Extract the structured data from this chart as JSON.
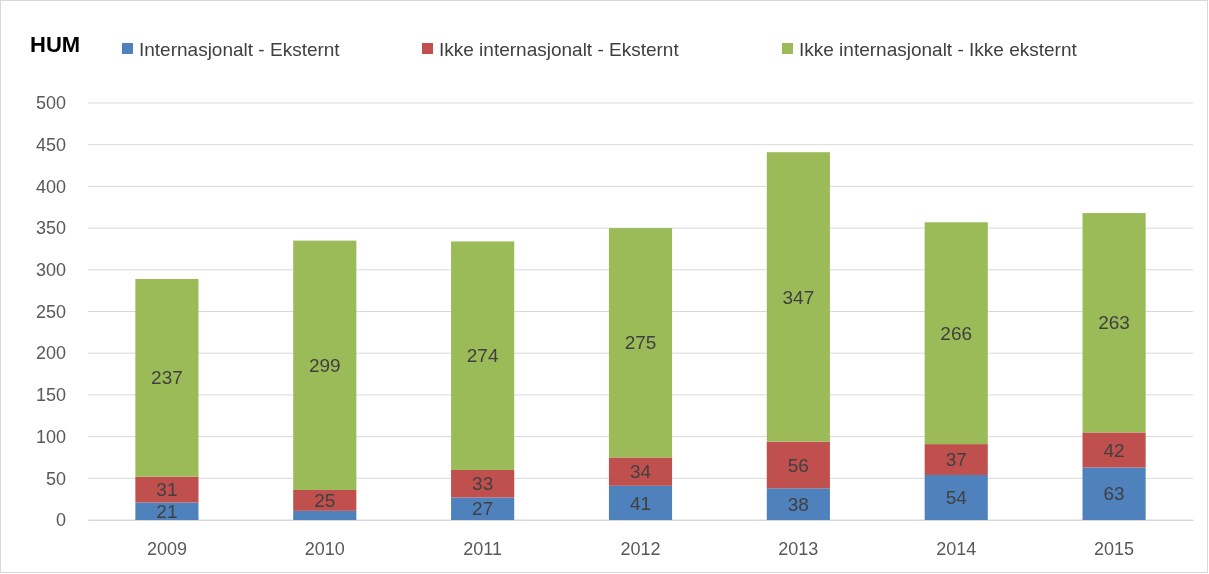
{
  "chart_data": {
    "type": "bar",
    "title": "HUM",
    "stacked": true,
    "categories": [
      "2009",
      "2010",
      "2011",
      "2012",
      "2013",
      "2014",
      "2015"
    ],
    "series": [
      {
        "name": "Internasjonalt - Eksternt",
        "color": "#4f81bd",
        "values": [
          21,
          11,
          27,
          41,
          38,
          54,
          63
        ],
        "value_labels": [
          "21",
          null,
          "27",
          "41",
          "38",
          "54",
          "63"
        ]
      },
      {
        "name": "Ikke internasjonalt - Eksternt",
        "color": "#c0504d",
        "values": [
          31,
          25,
          33,
          34,
          56,
          37,
          42
        ],
        "value_labels": [
          "31",
          "25",
          "33",
          "34",
          "56",
          "37",
          "42"
        ]
      },
      {
        "name": "Ikke internasjonalt - Ikke eksternt",
        "color": "#9bbb59",
        "values": [
          237,
          299,
          274,
          275,
          347,
          266,
          263
        ],
        "value_labels": [
          "237",
          "299",
          "274",
          "275",
          "347",
          "266",
          "263"
        ]
      }
    ],
    "ylim": [
      0,
      500
    ],
    "yticks": [
      0,
      50,
      100,
      150,
      200,
      250,
      300,
      350,
      400,
      450,
      500
    ],
    "grid": "y",
    "legend": "top"
  }
}
